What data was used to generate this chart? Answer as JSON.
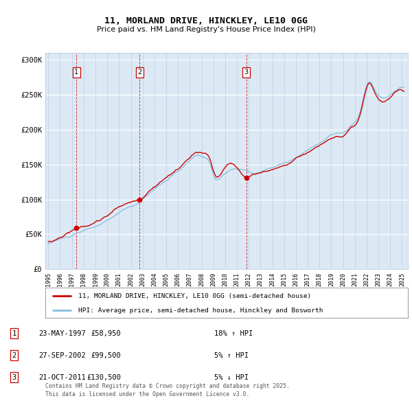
{
  "title": "11, MORLAND DRIVE, HINCKLEY, LE10 0GG",
  "subtitle": "Price paid vs. HM Land Registry's House Price Index (HPI)",
  "bg_color": "#dce9f5",
  "red_line_color": "#cc0000",
  "blue_line_color": "#88bbdd",
  "sale_dates": [
    "1997-05-23",
    "2002-09-27",
    "2011-10-21"
  ],
  "sale_prices": [
    58950,
    99500,
    130500
  ],
  "sale_labels": [
    "1",
    "2",
    "3"
  ],
  "legend_red": "11, MORLAND DRIVE, HINCKLEY, LE10 0GG (semi-detached house)",
  "legend_blue": "HPI: Average price, semi-detached house, Hinckley and Bosworth",
  "table_rows": [
    [
      "1",
      "23-MAY-1997",
      "£58,950",
      "18% ↑ HPI"
    ],
    [
      "2",
      "27-SEP-2002",
      "£99,500",
      "5% ↑ HPI"
    ],
    [
      "3",
      "21-OCT-2011",
      "£130,500",
      "5% ↓ HPI"
    ]
  ],
  "footnote": "Contains HM Land Registry data © Crown copyright and database right 2025.\nThis data is licensed under the Open Government Licence v3.0.",
  "ylim": [
    0,
    310000
  ],
  "yticks": [
    0,
    50000,
    100000,
    150000,
    200000,
    250000,
    300000
  ],
  "ytick_labels": [
    "£0",
    "£50K",
    "£100K",
    "£150K",
    "£200K",
    "£250K",
    "£300K"
  ]
}
